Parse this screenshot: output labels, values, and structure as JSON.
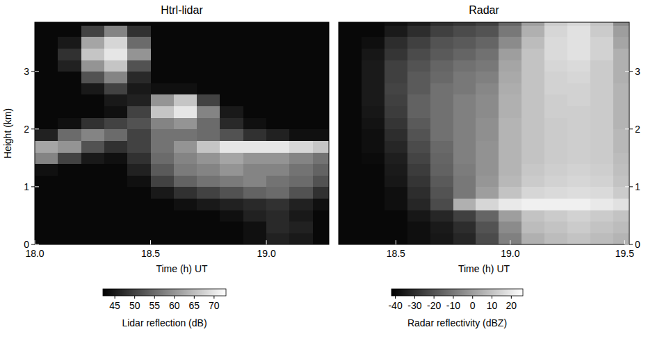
{
  "chart_data": [
    {
      "type": "heatmap",
      "title": "Htrl-lidar",
      "x_label": "Time (h) UT",
      "y_label": "Height (km)",
      "x": [
        18.05,
        18.15,
        18.25,
        18.35,
        18.45,
        18.55,
        18.65,
        18.75,
        18.85,
        18.95,
        19.05,
        19.15,
        19.25
      ],
      "y": [
        0.1,
        0.3,
        0.5,
        0.7,
        0.9,
        1.1,
        1.3,
        1.5,
        1.7,
        1.9,
        2.1,
        2.3,
        2.5,
        2.7,
        2.9,
        3.1,
        3.3,
        3.5,
        3.7,
        3.9
      ],
      "values": [
        [
          43,
          43,
          43,
          43,
          43,
          43,
          43,
          43,
          43,
          44,
          46,
          45,
          43
        ],
        [
          43,
          43,
          43,
          43,
          43,
          43,
          43,
          43,
          43,
          44,
          47,
          46,
          43
        ],
        [
          43,
          43,
          43,
          43,
          43,
          43,
          43,
          43,
          44,
          46,
          47,
          45,
          43
        ],
        [
          43,
          43,
          43,
          43,
          43,
          43,
          44,
          45,
          46,
          47,
          48,
          46,
          44
        ],
        [
          43,
          43,
          43,
          43,
          43,
          45,
          48,
          50,
          52,
          54,
          55,
          52,
          48
        ],
        [
          43,
          43,
          43,
          43,
          44,
          50,
          54,
          56,
          57,
          58,
          56,
          55,
          52
        ],
        [
          44,
          43,
          43,
          43,
          46,
          53,
          57,
          58,
          60,
          58,
          58,
          56,
          54
        ],
        [
          58,
          50,
          45,
          44,
          48,
          55,
          58,
          60,
          62,
          60,
          60,
          58,
          56
        ],
        [
          62,
          60,
          52,
          48,
          50,
          56,
          60,
          66,
          70,
          70,
          70,
          68,
          66
        ],
        [
          46,
          55,
          58,
          55,
          50,
          56,
          56,
          55,
          52,
          48,
          46,
          44,
          44
        ],
        [
          43,
          44,
          48,
          50,
          52,
          58,
          60,
          55,
          47,
          44,
          43,
          43,
          43
        ],
        [
          43,
          43,
          43,
          44,
          50,
          66,
          70,
          58,
          45,
          43,
          43,
          43,
          43
        ],
        [
          43,
          43,
          43,
          45,
          46,
          60,
          66,
          50,
          43,
          43,
          43,
          43,
          43
        ],
        [
          43,
          43,
          45,
          50,
          45,
          44,
          44,
          43,
          43,
          43,
          43,
          43,
          43
        ],
        [
          43,
          43,
          52,
          58,
          47,
          43,
          43,
          43,
          43,
          43,
          43,
          43,
          43
        ],
        [
          43,
          46,
          60,
          66,
          52,
          43,
          43,
          43,
          43,
          43,
          43,
          43,
          43
        ],
        [
          43,
          48,
          66,
          70,
          60,
          43,
          43,
          43,
          43,
          43,
          43,
          43,
          43
        ],
        [
          43,
          45,
          62,
          68,
          55,
          43,
          43,
          43,
          43,
          43,
          43,
          43,
          43
        ],
        [
          43,
          43,
          50,
          58,
          48,
          43,
          43,
          43,
          43,
          43,
          43,
          43,
          43
        ],
        [
          43,
          43,
          43,
          43,
          43,
          43,
          43,
          43,
          43,
          43,
          43,
          43,
          43
        ]
      ],
      "xlim": [
        18.0,
        19.27
      ],
      "ylim": [
        0,
        3.85
      ],
      "xticks": [
        {
          "value": 18,
          "label": "18.0"
        },
        18.5,
        {
          "value": 19,
          "label": "19.0"
        }
      ],
      "yticks": [
        0,
        1,
        2,
        3
      ],
      "color_label": "Lidar reflection (dB)",
      "color_range": [
        42,
        73
      ],
      "color_ticks": [
        45,
        50,
        55,
        60,
        65,
        70
      ]
    },
    {
      "type": "heatmap",
      "title": "Radar",
      "x_label": "Time (h) UT",
      "x": [
        18.3,
        18.4,
        18.5,
        18.6,
        18.7,
        18.8,
        18.9,
        19.0,
        19.1,
        19.2,
        19.3,
        19.4,
        19.5
      ],
      "y": [
        0.1,
        0.3,
        0.5,
        0.7,
        0.9,
        1.1,
        1.3,
        1.5,
        1.7,
        1.9,
        2.1,
        2.3,
        2.5,
        2.7,
        2.9,
        3.1,
        3.3,
        3.5,
        3.7,
        3.9
      ],
      "values": [
        [
          -40,
          -40,
          -40,
          -38,
          -36,
          -32,
          -22,
          -8,
          5,
          8,
          10,
          8,
          6
        ],
        [
          -40,
          -40,
          -40,
          -38,
          -35,
          -30,
          -20,
          -5,
          8,
          10,
          12,
          10,
          8
        ],
        [
          -40,
          -40,
          -40,
          -36,
          -32,
          -25,
          -15,
          0,
          10,
          12,
          14,
          12,
          10
        ],
        [
          -40,
          -40,
          -38,
          -32,
          -22,
          5,
          15,
          20,
          22,
          22,
          22,
          20,
          18
        ],
        [
          -40,
          -40,
          -38,
          -30,
          -20,
          -10,
          0,
          10,
          15,
          16,
          17,
          16,
          12
        ],
        [
          -40,
          -40,
          -36,
          -28,
          -18,
          -10,
          -2,
          7,
          12,
          14,
          15,
          14,
          10
        ],
        [
          -40,
          -40,
          -35,
          -26,
          -16,
          -9,
          -3,
          6,
          11,
          13,
          14,
          13,
          9
        ],
        [
          -40,
          -39,
          -34,
          -24,
          -15,
          -8,
          -3,
          6,
          10,
          12,
          13,
          12,
          8
        ],
        [
          -40,
          -38,
          -32,
          -22,
          -14,
          -8,
          -3,
          6,
          10,
          12,
          13,
          12,
          7
        ],
        [
          -40,
          -38,
          -30,
          -20,
          -12,
          -8,
          -4,
          6,
          10,
          12,
          13,
          12,
          7
        ],
        [
          -40,
          -37,
          -28,
          -18,
          -12,
          -8,
          -4,
          6,
          10,
          12,
          13,
          12,
          6
        ],
        [
          -40,
          -36,
          -26,
          -16,
          -12,
          -8,
          -5,
          5,
          10,
          13,
          13,
          12,
          6
        ],
        [
          -40,
          -35,
          -25,
          -16,
          -12,
          -8,
          -5,
          5,
          10,
          13,
          14,
          12,
          6
        ],
        [
          -40,
          -35,
          -24,
          -18,
          -12,
          -10,
          -6,
          4,
          10,
          14,
          14,
          12,
          6
        ],
        [
          -40,
          -35,
          -25,
          -18,
          -14,
          -10,
          -8,
          3,
          10,
          14,
          15,
          12,
          5
        ],
        [
          -40,
          -35,
          -25,
          -20,
          -15,
          -12,
          -10,
          2,
          10,
          15,
          16,
          12,
          5
        ],
        [
          -40,
          -36,
          -28,
          -22,
          -18,
          -15,
          -12,
          0,
          10,
          16,
          18,
          14,
          5
        ],
        [
          -40,
          -38,
          -30,
          -25,
          -20,
          -18,
          -15,
          -5,
          8,
          16,
          18,
          14,
          2
        ],
        [
          -40,
          -40,
          -35,
          -30,
          -25,
          -22,
          -20,
          -10,
          5,
          15,
          18,
          12,
          0
        ],
        [
          -40,
          -40,
          -38,
          -35,
          -30,
          -28,
          -25,
          -15,
          0,
          12,
          15,
          10,
          -5
        ]
      ],
      "xlim": [
        18.25,
        19.52
      ],
      "ylim": [
        0,
        3.85
      ],
      "xticks": [
        18.5,
        {
          "value": 19,
          "label": "19.0"
        },
        19.5
      ],
      "yticks": [
        0,
        1,
        2,
        3
      ],
      "color_label": "Radar reflectivity (dBZ)",
      "color_range": [
        -42,
        26
      ],
      "color_ticks": [
        -40,
        -30,
        -20,
        -10,
        0,
        10,
        20
      ]
    }
  ]
}
